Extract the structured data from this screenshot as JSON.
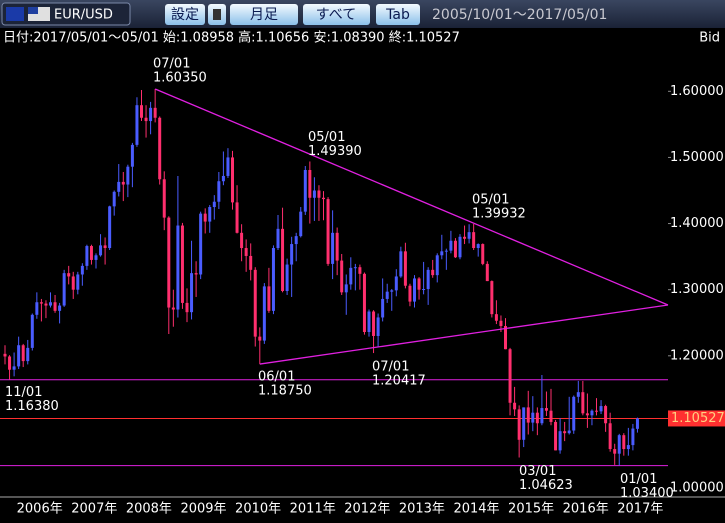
{
  "toolbar": {
    "pair": "EUR/USD",
    "buttons": [
      "設定",
      "月足",
      "すべて",
      "Tab"
    ],
    "range": "2005/10/01～2017/05/01"
  },
  "info": "日付:2017/05/01～05/01 始:1.08958 高:1.10656 安:1.08390 終:1.10527",
  "price_type": "Bid",
  "chart_data": {
    "type": "candlestick",
    "up_color": "#4a5cff",
    "down_color": "#ff2f6e",
    "ylim": [
      0.988,
      1.667
    ],
    "yticks": [
      {
        "value": 1.6,
        "label": "1.60000"
      },
      {
        "value": 1.5,
        "label": "1.50000"
      },
      {
        "value": 1.4,
        "label": "1.40000"
      },
      {
        "value": 1.3,
        "label": "1.30000"
      },
      {
        "value": 1.2,
        "label": "1.20000"
      },
      {
        "value": 1.0,
        "label": "1.00000"
      }
    ],
    "year_labels": [
      "2006年",
      "2007年",
      "2008年",
      "2009年",
      "2010年",
      "2011年",
      "2012年",
      "2013年",
      "2014年",
      "2015年",
      "2016年",
      "2017年"
    ],
    "ohlc": [
      [
        1.203,
        1.216,
        1.187,
        1.199
      ],
      [
        1.199,
        1.201,
        1.164,
        1.179
      ],
      [
        1.179,
        1.205,
        1.169,
        1.184
      ],
      [
        1.184,
        1.229,
        1.18,
        1.216
      ],
      [
        1.216,
        1.218,
        1.183,
        1.192
      ],
      [
        1.192,
        1.224,
        1.187,
        1.212
      ],
      [
        1.212,
        1.264,
        1.208,
        1.262
      ],
      [
        1.262,
        1.296,
        1.256,
        1.281
      ],
      [
        1.281,
        1.286,
        1.252,
        1.279
      ],
      [
        1.279,
        1.284,
        1.257,
        1.276
      ],
      [
        1.276,
        1.296,
        1.273,
        1.281
      ],
      [
        1.281,
        1.292,
        1.265,
        1.268
      ],
      [
        1.268,
        1.28,
        1.249,
        1.276
      ],
      [
        1.276,
        1.33,
        1.274,
        1.325
      ],
      [
        1.325,
        1.336,
        1.308,
        1.32
      ],
      [
        1.32,
        1.327,
        1.286,
        1.3
      ],
      [
        1.3,
        1.327,
        1.293,
        1.323
      ],
      [
        1.323,
        1.34,
        1.306,
        1.336
      ],
      [
        1.336,
        1.368,
        1.33,
        1.366
      ],
      [
        1.366,
        1.368,
        1.338,
        1.345
      ],
      [
        1.345,
        1.355,
        1.332,
        1.352
      ],
      [
        1.352,
        1.384,
        1.35,
        1.367
      ],
      [
        1.367,
        1.379,
        1.338,
        1.363
      ],
      [
        1.363,
        1.427,
        1.36,
        1.426
      ],
      [
        1.426,
        1.45,
        1.412,
        1.448
      ],
      [
        1.448,
        1.49,
        1.441,
        1.463
      ],
      [
        1.463,
        1.478,
        1.434,
        1.459
      ],
      [
        1.459,
        1.489,
        1.44,
        1.486
      ],
      [
        1.486,
        1.522,
        1.455,
        1.519
      ],
      [
        1.519,
        1.591,
        1.516,
        1.579
      ],
      [
        1.579,
        1.602,
        1.555,
        1.56
      ],
      [
        1.56,
        1.579,
        1.53,
        1.555
      ],
      [
        1.555,
        1.584,
        1.535,
        1.575
      ],
      [
        1.575,
        1.6035,
        1.553,
        1.56
      ],
      [
        1.56,
        1.562,
        1.459,
        1.467
      ],
      [
        1.467,
        1.479,
        1.39,
        1.409
      ],
      [
        1.409,
        1.411,
        1.233,
        1.273
      ],
      [
        1.273,
        1.3,
        1.244,
        1.27
      ],
      [
        1.27,
        1.472,
        1.258,
        1.397
      ],
      [
        1.397,
        1.401,
        1.271,
        1.28
      ],
      [
        1.28,
        1.302,
        1.251,
        1.266
      ],
      [
        1.266,
        1.374,
        1.255,
        1.325
      ],
      [
        1.325,
        1.343,
        1.289,
        1.323
      ],
      [
        1.323,
        1.418,
        1.316,
        1.415
      ],
      [
        1.415,
        1.423,
        1.385,
        1.403
      ],
      [
        1.403,
        1.428,
        1.386,
        1.425
      ],
      [
        1.425,
        1.443,
        1.406,
        1.433
      ],
      [
        1.433,
        1.478,
        1.422,
        1.464
      ],
      [
        1.464,
        1.509,
        1.458,
        1.472
      ],
      [
        1.472,
        1.514,
        1.469,
        1.5
      ],
      [
        1.5,
        1.51,
        1.421,
        1.432
      ],
      [
        1.432,
        1.458,
        1.385,
        1.386
      ],
      [
        1.386,
        1.399,
        1.343,
        1.363
      ],
      [
        1.363,
        1.376,
        1.327,
        1.351
      ],
      [
        1.351,
        1.37,
        1.314,
        1.33
      ],
      [
        1.33,
        1.334,
        1.214,
        1.229
      ],
      [
        1.229,
        1.243,
        1.1875,
        1.223
      ],
      [
        1.223,
        1.31,
        1.218,
        1.305
      ],
      [
        1.305,
        1.333,
        1.265,
        1.268
      ],
      [
        1.268,
        1.367,
        1.263,
        1.363
      ],
      [
        1.363,
        1.413,
        1.36,
        1.392
      ],
      [
        1.392,
        1.424,
        1.296,
        1.298
      ],
      [
        1.298,
        1.347,
        1.292,
        1.338
      ],
      [
        1.338,
        1.38,
        1.289,
        1.369
      ],
      [
        1.369,
        1.386,
        1.343,
        1.381
      ],
      [
        1.381,
        1.425,
        1.379,
        1.418
      ],
      [
        1.418,
        1.487,
        1.413,
        1.481
      ],
      [
        1.481,
        1.4939,
        1.4,
        1.439
      ],
      [
        1.439,
        1.47,
        1.404,
        1.45
      ],
      [
        1.45,
        1.458,
        1.404,
        1.439
      ],
      [
        1.439,
        1.449,
        1.405,
        1.437
      ],
      [
        1.437,
        1.44,
        1.336,
        1.339
      ],
      [
        1.339,
        1.42,
        1.316,
        1.386
      ],
      [
        1.386,
        1.394,
        1.322,
        1.344
      ],
      [
        1.344,
        1.354,
        1.292,
        1.296
      ],
      [
        1.296,
        1.323,
        1.262,
        1.308
      ],
      [
        1.308,
        1.349,
        1.3,
        1.333
      ],
      [
        1.333,
        1.339,
        1.299,
        1.334
      ],
      [
        1.334,
        1.338,
        1.3,
        1.324
      ],
      [
        1.324,
        1.326,
        1.232,
        1.236
      ],
      [
        1.236,
        1.27,
        1.229,
        1.267
      ],
      [
        1.267,
        1.269,
        1.20417,
        1.23
      ],
      [
        1.23,
        1.264,
        1.213,
        1.258
      ],
      [
        1.258,
        1.317,
        1.252,
        1.286
      ],
      [
        1.286,
        1.309,
        1.28,
        1.297
      ],
      [
        1.297,
        1.301,
        1.268,
        1.299
      ],
      [
        1.299,
        1.331,
        1.29,
        1.32
      ],
      [
        1.32,
        1.365,
        1.318,
        1.358
      ],
      [
        1.358,
        1.371,
        1.302,
        1.306
      ],
      [
        1.306,
        1.309,
        1.275,
        1.282
      ],
      [
        1.282,
        1.322,
        1.273,
        1.317
      ],
      [
        1.317,
        1.319,
        1.285,
        1.3
      ],
      [
        1.3,
        1.342,
        1.293,
        1.301
      ],
      [
        1.301,
        1.334,
        1.277,
        1.33
      ],
      [
        1.33,
        1.345,
        1.318,
        1.322
      ],
      [
        1.322,
        1.355,
        1.311,
        1.352
      ],
      [
        1.352,
        1.383,
        1.346,
        1.358
      ],
      [
        1.358,
        1.362,
        1.33,
        1.359
      ],
      [
        1.359,
        1.389,
        1.355,
        1.374
      ],
      [
        1.374,
        1.378,
        1.348,
        1.349
      ],
      [
        1.349,
        1.384,
        1.346,
        1.38
      ],
      [
        1.38,
        1.397,
        1.369,
        1.377
      ],
      [
        1.377,
        1.399,
        1.37,
        1.387
      ],
      [
        1.387,
        1.39932,
        1.36,
        1.363
      ],
      [
        1.363,
        1.37,
        1.35,
        1.369
      ],
      [
        1.369,
        1.37,
        1.337,
        1.339
      ],
      [
        1.339,
        1.343,
        1.313,
        1.313
      ],
      [
        1.313,
        1.314,
        1.258,
        1.263
      ],
      [
        1.263,
        1.284,
        1.248,
        1.253
      ],
      [
        1.253,
        1.261,
        1.236,
        1.245
      ],
      [
        1.245,
        1.257,
        1.21,
        1.21
      ],
      [
        1.21,
        1.212,
        1.11,
        1.129
      ],
      [
        1.129,
        1.153,
        1.109,
        1.119
      ],
      [
        1.119,
        1.125,
        1.04623,
        1.073
      ],
      [
        1.073,
        1.122,
        1.062,
        1.122
      ],
      [
        1.122,
        1.147,
        1.081,
        1.099
      ],
      [
        1.099,
        1.139,
        1.086,
        1.114
      ],
      [
        1.114,
        1.122,
        1.08,
        1.098
      ],
      [
        1.098,
        1.171,
        1.095,
        1.121
      ],
      [
        1.121,
        1.146,
        1.109,
        1.117
      ],
      [
        1.117,
        1.15,
        1.095,
        1.1
      ],
      [
        1.1,
        1.103,
        1.057,
        1.057
      ],
      [
        1.057,
        1.106,
        1.052,
        1.086
      ],
      [
        1.086,
        1.1,
        1.071,
        1.083
      ],
      [
        1.083,
        1.138,
        1.081,
        1.087
      ],
      [
        1.087,
        1.14,
        1.082,
        1.138
      ],
      [
        1.138,
        1.162,
        1.129,
        1.145
      ],
      [
        1.145,
        1.162,
        1.11,
        1.113
      ],
      [
        1.113,
        1.143,
        1.091,
        1.11
      ],
      [
        1.11,
        1.119,
        1.095,
        1.117
      ],
      [
        1.117,
        1.136,
        1.11,
        1.116
      ],
      [
        1.116,
        1.133,
        1.112,
        1.124
      ],
      [
        1.124,
        1.126,
        1.085,
        1.098
      ],
      [
        1.098,
        1.114,
        1.055,
        1.059
      ],
      [
        1.059,
        1.067,
        1.035,
        1.052
      ],
      [
        1.052,
        1.082,
        1.034,
        1.08
      ],
      [
        1.08,
        1.083,
        1.049,
        1.059
      ],
      [
        1.059,
        1.091,
        1.049,
        1.065
      ],
      [
        1.065,
        1.097,
        1.057,
        1.09
      ],
      [
        1.08958,
        1.10656,
        1.0839,
        1.10527
      ]
    ],
    "annotations": [
      {
        "date": "07/01",
        "price": {
          "value": 1.6035,
          "label": "1.60350"
        }
      },
      {
        "date": "05/01",
        "price": {
          "value": 1.4939,
          "label": "1.49390"
        }
      },
      {
        "date": "05/01",
        "price": {
          "value": 1.39932,
          "label": "1.39932"
        }
      },
      {
        "date": "06/01",
        "price": {
          "value": 1.1875,
          "label": "1.18750"
        }
      },
      {
        "date": "07/01",
        "price": {
          "value": 1.20417,
          "label": "1.20417"
        }
      },
      {
        "date": "11/01",
        "price": {
          "value": 1.1638,
          "label": "1.16380"
        }
      },
      {
        "date": "03/01",
        "price": {
          "value": 1.04623,
          "label": "1.04623"
        }
      },
      {
        "date": "01/01",
        "price": {
          "value": 1.034,
          "label": "1.03400"
        }
      }
    ],
    "last_price": {
      "value": 1.10527,
      "label": "1.10527"
    },
    "support_color": "#e020e0",
    "last_color": "#ff3030"
  }
}
